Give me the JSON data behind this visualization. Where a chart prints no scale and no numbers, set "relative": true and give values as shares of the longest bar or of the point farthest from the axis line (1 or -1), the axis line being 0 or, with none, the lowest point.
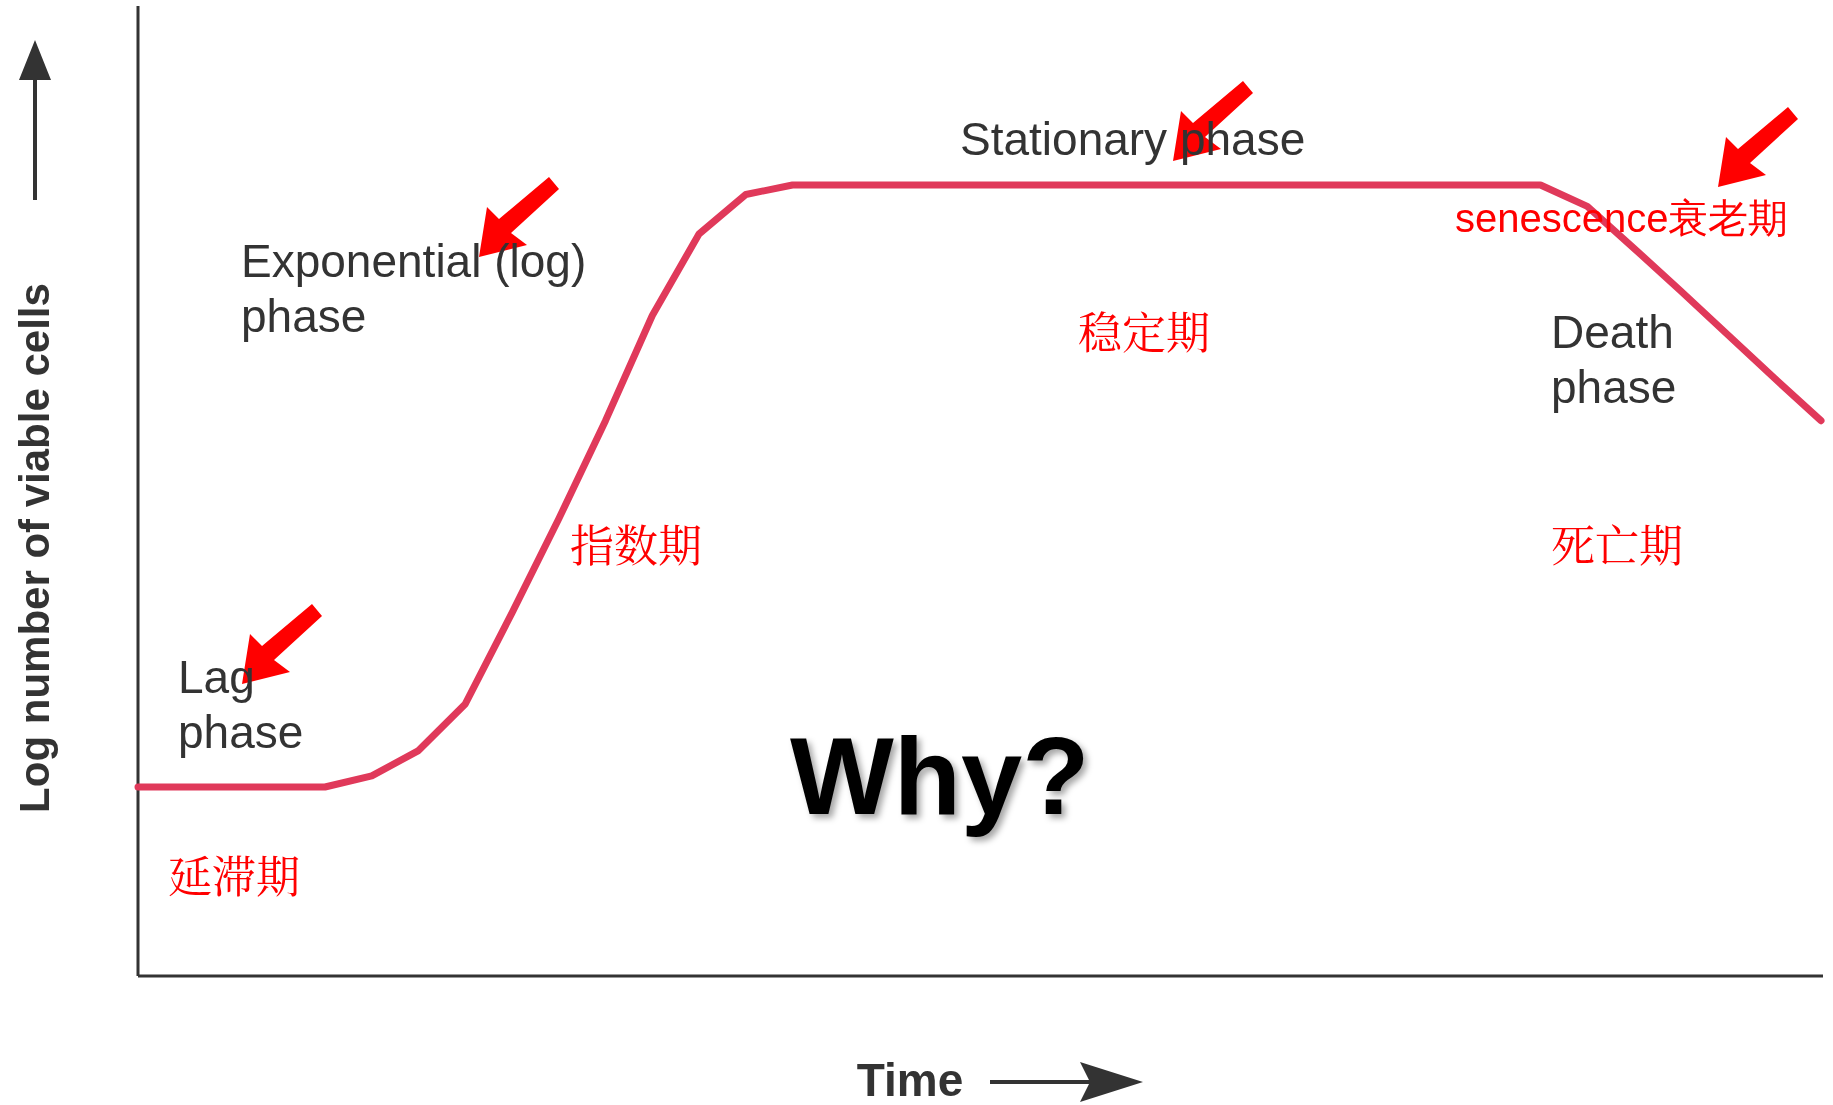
{
  "chart_data": {
    "type": "line",
    "relative": true,
    "xlabel": "Time",
    "ylabel": "Log number of viable cells",
    "categories": [
      null,
      null,
      null,
      null,
      null,
      null,
      null,
      null,
      null,
      null,
      null,
      null,
      null,
      null,
      null,
      null,
      null,
      null,
      null,
      null,
      null,
      null,
      null,
      null,
      null,
      null,
      null,
      null,
      null,
      null,
      null,
      null,
      null,
      null,
      null,
      null,
      null
    ],
    "series": [
      {
        "color": "#e0395a",
        "values": [
          0.239,
          0.239,
          0.239,
          0.239,
          0.239,
          0.253,
          0.285,
          0.344,
          0.459,
          0.578,
          0.702,
          0.835,
          0.938,
          0.988,
          1,
          1,
          1,
          1,
          1,
          1,
          1,
          1,
          1,
          1,
          1,
          1,
          1,
          1,
          1,
          1,
          1,
          0.973,
          0.92,
          0.866,
          0.811,
          0.756,
          0.702
        ]
      }
    ],
    "annotations": [
      "Lag phase",
      "Exponential (log) phase",
      "Stationary phase",
      "Death phase",
      "延滞期",
      "指数期",
      "稳定期",
      "死亡期",
      "senescence衰老期",
      "Why?"
    ],
    "marker": "none",
    "line_style": "solid",
    "grid": false
  }
}
